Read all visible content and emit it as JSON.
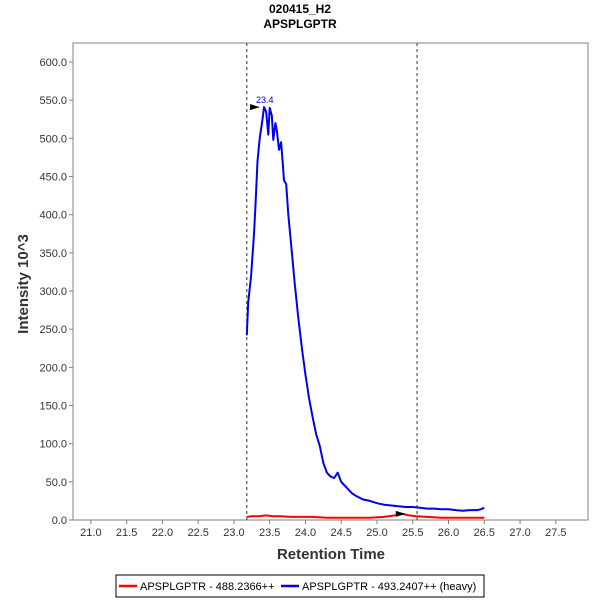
{
  "chart_data": {
    "type": "line",
    "title": "020415_H2",
    "subtitle": "APSPLGPTR",
    "xlabel": "Retention Time",
    "ylabel": "Intensity 10^3",
    "xlim": [
      20.75,
      27.95
    ],
    "ylim": [
      0,
      625
    ],
    "xticks": [
      "21.0",
      "21.5",
      "22.0",
      "22.5",
      "23.0",
      "23.5",
      "24.0",
      "24.5",
      "25.0",
      "25.5",
      "26.0",
      "26.5",
      "27.0",
      "27.5"
    ],
    "yticks": [
      "0.0",
      "50.0",
      "100.0",
      "150.0",
      "200.0",
      "250.0",
      "300.0",
      "350.0",
      "400.0",
      "450.0",
      "500.0",
      "550.0",
      "600.0"
    ],
    "integration_bounds": [
      23.18,
      25.56
    ],
    "peak_annotation": {
      "label": "23.4",
      "rt": 23.42,
      "value": 541
    },
    "light_peak_marker": {
      "rt": 25.36,
      "value": 8
    },
    "series": [
      {
        "name": "APSPLGPTR - 488.2366++",
        "color": "#ff0000",
        "x": [
          23.18,
          23.25,
          23.35,
          23.45,
          23.55,
          23.65,
          23.8,
          23.95,
          24.1,
          24.3,
          24.5,
          24.7,
          24.9,
          25.1,
          25.25,
          25.35,
          25.45,
          25.55,
          25.7,
          25.9,
          26.1,
          26.3,
          26.5
        ],
        "y": [
          4,
          5,
          5,
          6,
          5,
          5,
          4,
          4,
          4,
          3,
          3,
          3,
          3,
          4,
          6,
          8,
          6,
          5,
          4,
          3,
          3,
          3,
          3
        ]
      },
      {
        "name": "APSPLGPTR - 493.2407++ (heavy)",
        "color": "#0000ee",
        "x": [
          23.18,
          23.2,
          23.24,
          23.28,
          23.3,
          23.33,
          23.36,
          23.4,
          23.42,
          23.45,
          23.48,
          23.5,
          23.53,
          23.55,
          23.58,
          23.6,
          23.63,
          23.66,
          23.68,
          23.7,
          23.73,
          23.76,
          23.8,
          23.85,
          23.9,
          23.95,
          24.0,
          24.05,
          24.1,
          24.15,
          24.2,
          24.25,
          24.3,
          24.35,
          24.4,
          24.45,
          24.5,
          24.55,
          24.6,
          24.65,
          24.7,
          24.8,
          24.9,
          25.0,
          25.1,
          25.2,
          25.3,
          25.4,
          25.5,
          25.6,
          25.7,
          25.8,
          25.9,
          26.0,
          26.1,
          26.2,
          26.3,
          26.4,
          26.45,
          26.5
        ],
        "y": [
          242,
          285,
          320,
          375,
          410,
          470,
          500,
          525,
          541,
          535,
          505,
          540,
          530,
          498,
          520,
          510,
          485,
          495,
          470,
          445,
          440,
          400,
          360,
          310,
          265,
          225,
          190,
          160,
          135,
          112,
          97,
          75,
          62,
          57,
          55,
          62,
          50,
          45,
          40,
          35,
          32,
          27,
          25,
          22,
          20,
          19,
          18,
          17,
          17,
          16,
          15,
          15,
          14,
          14,
          13,
          12,
          13,
          13,
          14,
          16
        ]
      }
    ],
    "legend_position": "bottom-center"
  }
}
